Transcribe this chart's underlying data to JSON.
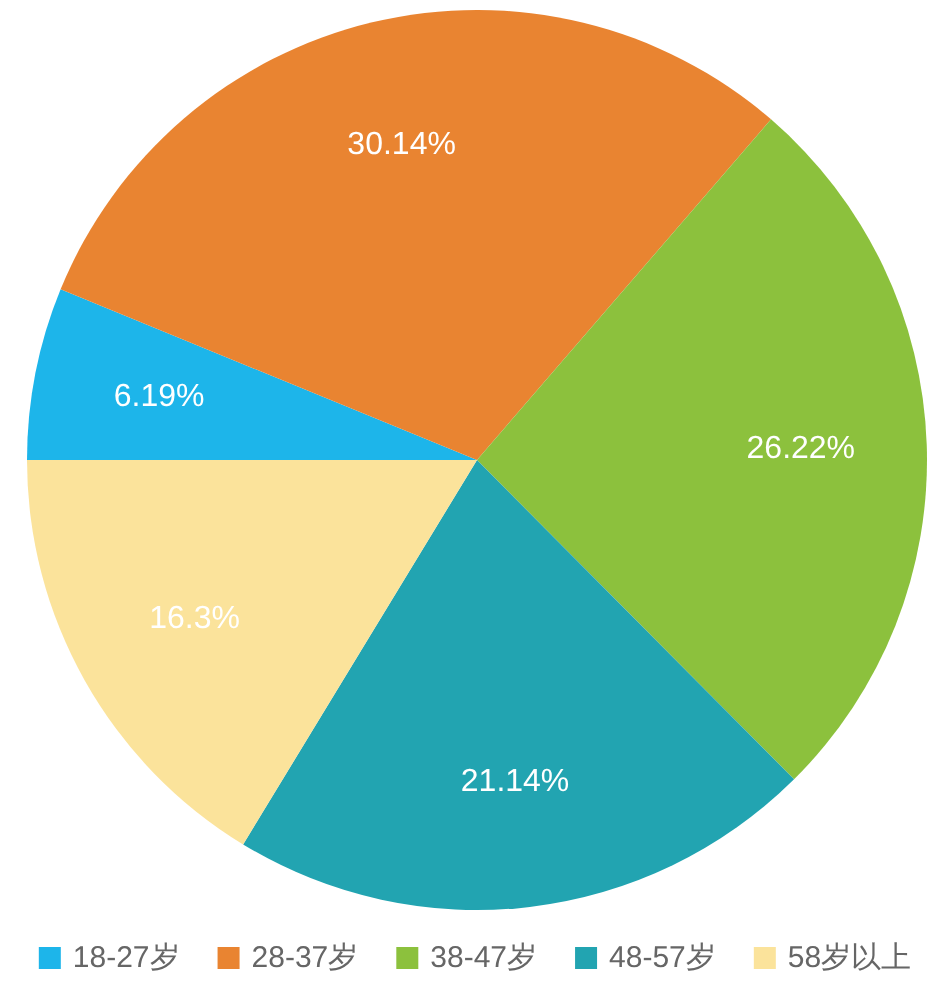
{
  "chart_data": {
    "type": "pie",
    "categories": [
      "18-27岁",
      "28-37岁",
      "38-47岁",
      "48-57岁",
      "58岁以上"
    ],
    "values": [
      6.19,
      30.14,
      26.22,
      21.14,
      16.3
    ],
    "colors": [
      "#1db5ea",
      "#e98431",
      "#8cc13d",
      "#22a4b1",
      "#fbe39b"
    ],
    "value_labels": [
      "6.19%",
      "30.14%",
      "26.22%",
      "21.14%",
      "16.3%"
    ],
    "legend": "bottom"
  }
}
